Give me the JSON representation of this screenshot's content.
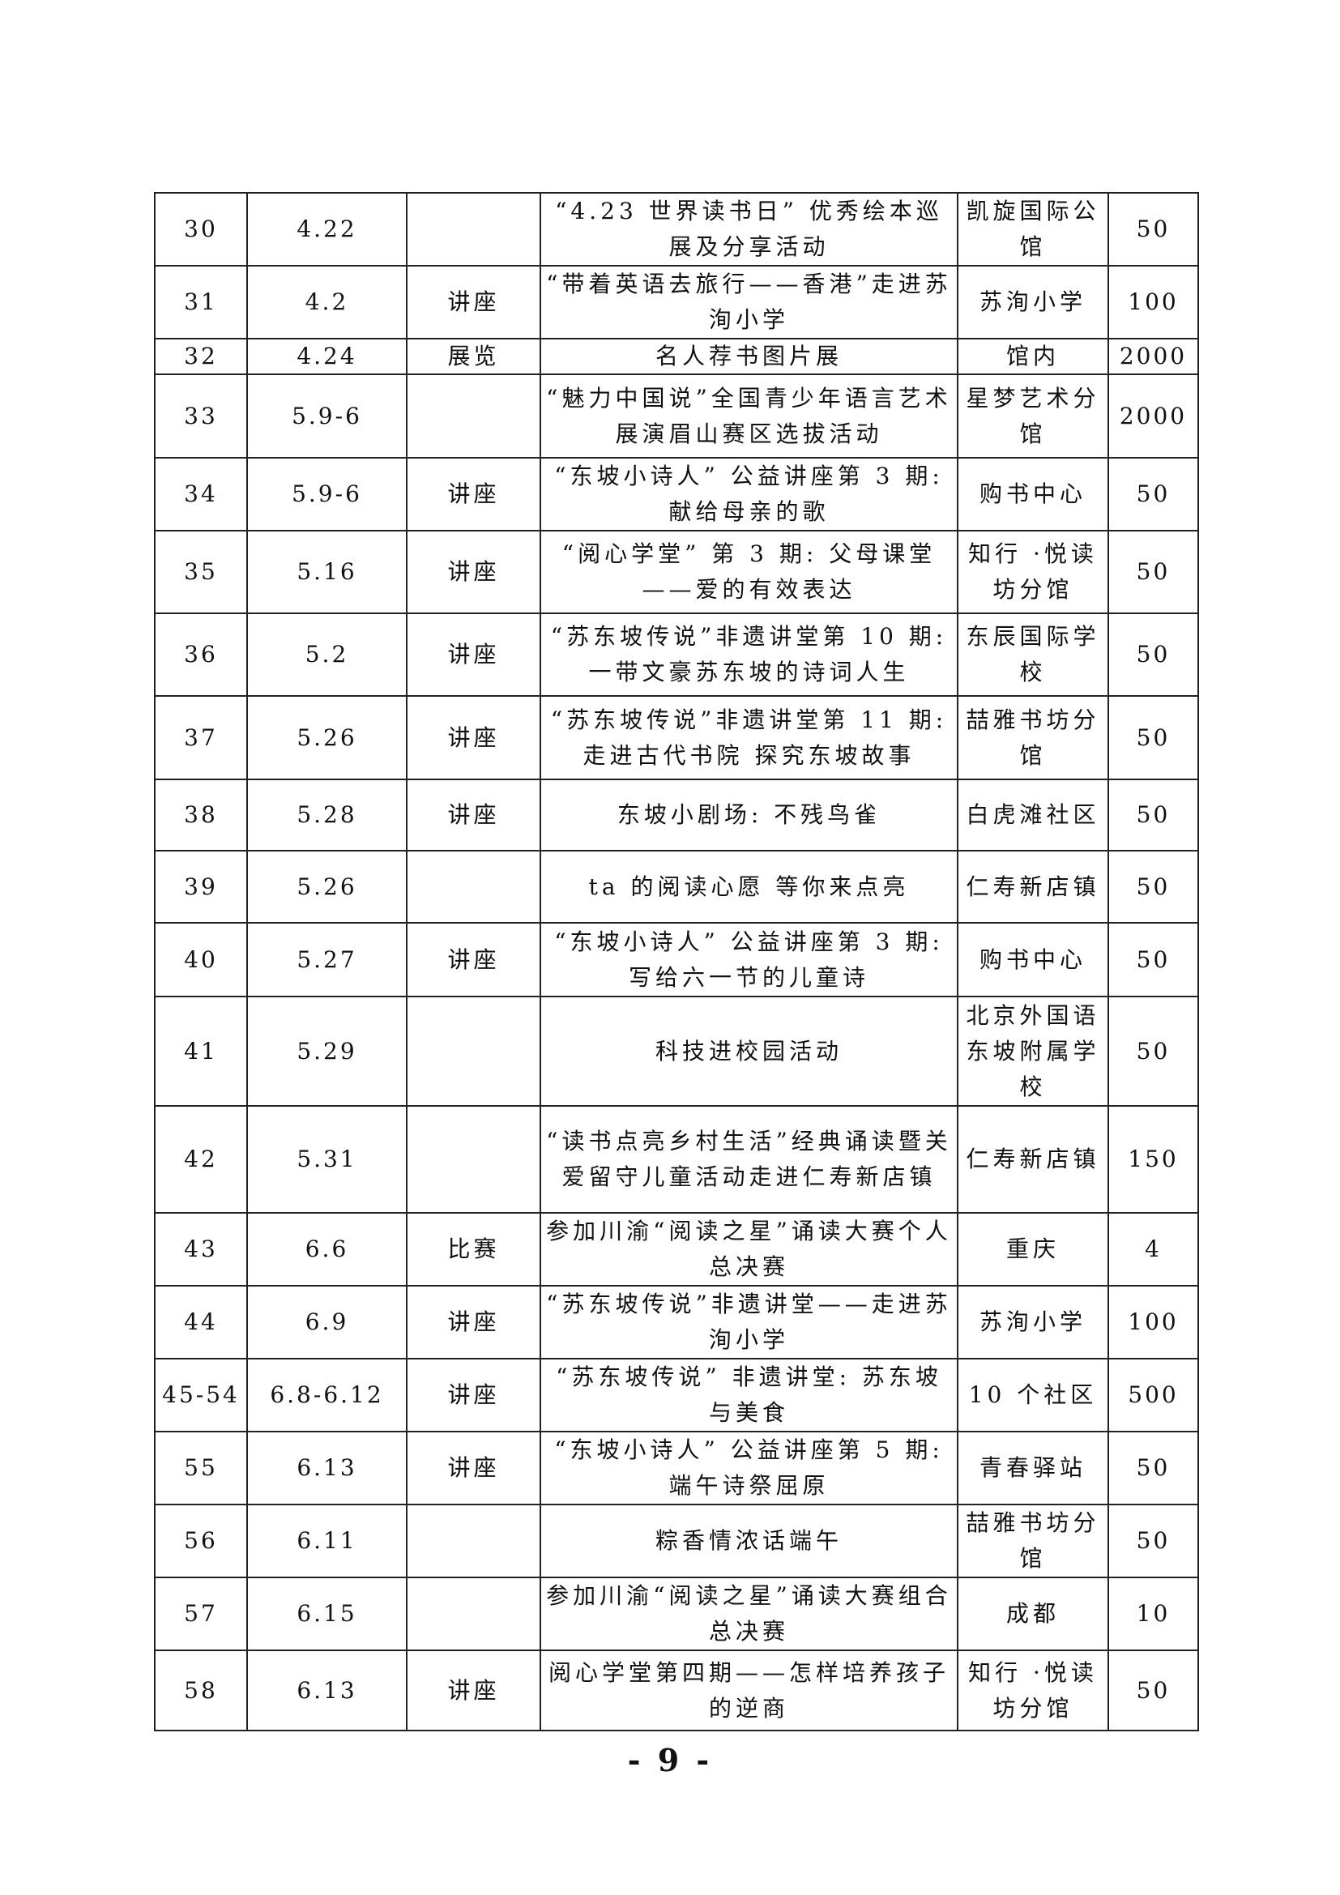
{
  "rows": [
    {
      "no": "30",
      "date": "4.22",
      "type": "",
      "name": "“4.23 世界读书日” 优秀绘本巡展及分享活动",
      "place": "凯旋国际公馆",
      "count": "50"
    },
    {
      "no": "31",
      "date": "4.2",
      "type": "讲座",
      "name": "“带着英语去旅行——香港”走进苏洵小学",
      "place": "苏洵小学",
      "count": "100"
    },
    {
      "no": "32",
      "date": "4.24",
      "type": "展览",
      "name": "名人荐书图片展",
      "place": "馆内",
      "count": "2000"
    },
    {
      "no": "33",
      "date": "5.9-6",
      "type": "",
      "name": "“魅力中国说”全国青少年语言艺术展演眉山赛区选拔活动",
      "place": "星梦艺术分馆",
      "count": "2000"
    },
    {
      "no": "34",
      "date": "5.9-6",
      "type": "讲座",
      "name": "“东坡小诗人” 公益讲座第 3 期: 献给母亲的歌",
      "place": "购书中心",
      "count": "50"
    },
    {
      "no": "35",
      "date": "5.16",
      "type": "讲座",
      "name": "“阅心学堂” 第 3 期: 父母课堂——爱的有效表达",
      "place": "知行 ·悦读坊分馆",
      "count": "50"
    },
    {
      "no": "36",
      "date": "5.2",
      "type": "讲座",
      "name": "“苏东坡传说”非遗讲堂第 10 期: 一带文豪苏东坡的诗词人生",
      "place": "东辰国际学校",
      "count": "50"
    },
    {
      "no": "37",
      "date": "5.26",
      "type": "讲座",
      "name": "“苏东坡传说”非遗讲堂第 11 期: 走进古代书院 探究东坡故事",
      "place": "喆雅书坊分馆",
      "count": "50"
    },
    {
      "no": "38",
      "date": "5.28",
      "type": "讲座",
      "name": "东坡小剧场: 不残鸟雀",
      "place": "白虎滩社区",
      "count": "50"
    },
    {
      "no": "39",
      "date": "5.26",
      "type": "",
      "name": "ta 的阅读心愿 等你来点亮",
      "place": "仁寿新店镇",
      "count": "50"
    },
    {
      "no": "40",
      "date": "5.27",
      "type": "讲座",
      "name": "“东坡小诗人” 公益讲座第 3 期: 写给六一节的儿童诗",
      "place": "购书中心",
      "count": "50"
    },
    {
      "no": "41",
      "date": "5.29",
      "type": "",
      "name": "科技进校园活动",
      "place": "北京外国语东坡附属学校",
      "count": "50"
    },
    {
      "no": "42",
      "date": "5.31",
      "type": "",
      "name": "“读书点亮乡村生活”经典诵读暨关爱留守儿童活动走进仁寿新店镇",
      "place": "仁寿新店镇",
      "count": "150"
    },
    {
      "no": "43",
      "date": "6.6",
      "type": "比赛",
      "name": "参加川渝“阅读之星”诵读大赛个人总决赛",
      "place": "重庆",
      "count": "4"
    },
    {
      "no": "44",
      "date": "6.9",
      "type": "讲座",
      "name": "“苏东坡传说”非遗讲堂——走进苏洵小学",
      "place": "苏洵小学",
      "count": "100"
    },
    {
      "no": "45-54",
      "date": "6.8-6.12",
      "type": "讲座",
      "name": "“苏东坡传说” 非遗讲堂: 苏东坡与美食",
      "place": "10 个社区",
      "count": "500"
    },
    {
      "no": "55",
      "date": "6.13",
      "type": "讲座",
      "name": "“东坡小诗人” 公益讲座第 5 期: 端午诗祭屈原",
      "place": "青春驿站",
      "count": "50"
    },
    {
      "no": "56",
      "date": "6.11",
      "type": "",
      "name": "粽香情浓话端午",
      "place": "喆雅书坊分馆",
      "count": "50"
    },
    {
      "no": "57",
      "date": "6.15",
      "type": "",
      "name": "参加川渝“阅读之星”诵读大赛组合总决赛",
      "place": "成都",
      "count": "10"
    },
    {
      "no": "58",
      "date": "6.13",
      "type": "讲座",
      "name": "阅心学堂第四期——怎样培养孩子的逆商",
      "place": "知行 ·悦读坊分馆",
      "count": "50"
    }
  ],
  "page_number": "- 9 -"
}
